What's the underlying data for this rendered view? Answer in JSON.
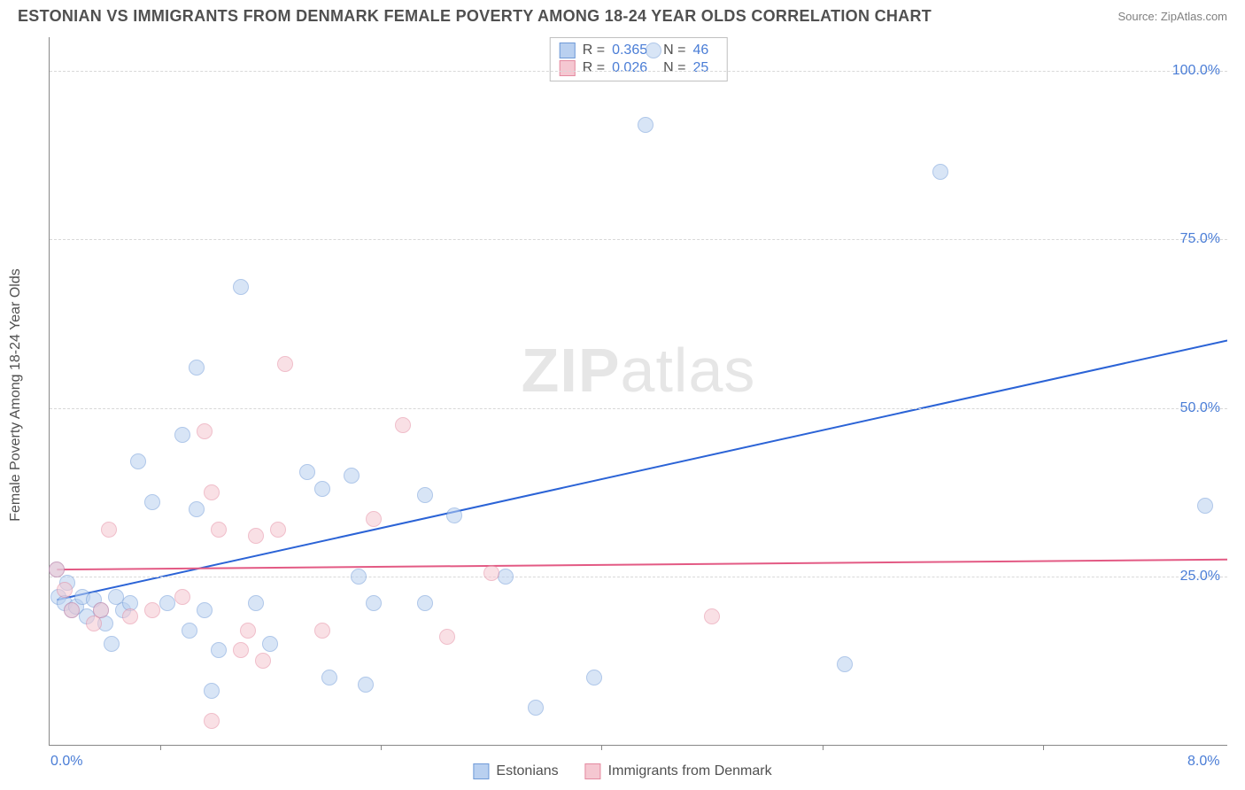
{
  "title": "ESTONIAN VS IMMIGRANTS FROM DENMARK FEMALE POVERTY AMONG 18-24 YEAR OLDS CORRELATION CHART",
  "source": "Source: ZipAtlas.com",
  "watermark_bold": "ZIP",
  "watermark_light": "atlas",
  "y_axis_label": "Female Poverty Among 18-24 Year Olds",
  "chart": {
    "type": "scatter",
    "xlim": [
      0.0,
      8.0
    ],
    "ylim": [
      0.0,
      105.0
    ],
    "x_ticks_at": [
      0.75,
      2.25,
      3.75,
      5.25,
      6.75
    ],
    "x_labels": [
      {
        "text": "0.0%",
        "x": 0.0
      },
      {
        "text": "8.0%",
        "x": 8.0
      }
    ],
    "y_gridlines": [
      25.0,
      50.0,
      75.0,
      100.0
    ],
    "y_labels": [
      "25.0%",
      "50.0%",
      "75.0%",
      "100.0%"
    ],
    "background_color": "#ffffff",
    "grid_color": "#d8d8d8",
    "axis_color": "#888888",
    "label_color": "#4a7dd6",
    "marker_radius": 9,
    "marker_stroke_width": 1,
    "series": [
      {
        "name": "Estonians",
        "fill": "#b9d0f0",
        "stroke": "#6f9ad8",
        "fill_opacity": 0.55,
        "trend_color": "#2b63d6",
        "trend_width": 2,
        "trend": {
          "x1": 0.05,
          "y1": 21.5,
          "x2": 8.0,
          "y2": 60.0
        },
        "R": "0.365",
        "N": "46",
        "points": [
          [
            0.05,
            26.0
          ],
          [
            0.06,
            22.0
          ],
          [
            0.1,
            21.0
          ],
          [
            0.12,
            24.0
          ],
          [
            0.15,
            20.0
          ],
          [
            0.18,
            20.5
          ],
          [
            0.22,
            22.0
          ],
          [
            0.25,
            19.0
          ],
          [
            0.3,
            21.5
          ],
          [
            0.35,
            20.0
          ],
          [
            0.38,
            18.0
          ],
          [
            0.42,
            15.0
          ],
          [
            0.45,
            22.0
          ],
          [
            0.5,
            20.0
          ],
          [
            0.55,
            21.0
          ],
          [
            0.6,
            42.0
          ],
          [
            0.7,
            36.0
          ],
          [
            0.8,
            21.0
          ],
          [
            0.9,
            46.0
          ],
          [
            0.95,
            17.0
          ],
          [
            1.0,
            35.0
          ],
          [
            1.0,
            56.0
          ],
          [
            1.05,
            20.0
          ],
          [
            1.1,
            8.0
          ],
          [
            1.15,
            14.0
          ],
          [
            1.3,
            68.0
          ],
          [
            1.4,
            21.0
          ],
          [
            1.5,
            15.0
          ],
          [
            1.75,
            40.5
          ],
          [
            1.85,
            38.0
          ],
          [
            1.9,
            10.0
          ],
          [
            2.05,
            40.0
          ],
          [
            2.1,
            25.0
          ],
          [
            2.15,
            9.0
          ],
          [
            2.2,
            21.0
          ],
          [
            2.55,
            37.0
          ],
          [
            2.55,
            21.0
          ],
          [
            2.75,
            34.0
          ],
          [
            3.1,
            25.0
          ],
          [
            3.3,
            5.5
          ],
          [
            3.7,
            10.0
          ],
          [
            4.05,
            92.0
          ],
          [
            4.1,
            103.0
          ],
          [
            5.4,
            12.0
          ],
          [
            6.05,
            85.0
          ],
          [
            7.85,
            35.5
          ]
        ]
      },
      {
        "name": "Immigrants from Denmark",
        "fill": "#f5c7d1",
        "stroke": "#e48aa0",
        "fill_opacity": 0.55,
        "trend_color": "#e35a84",
        "trend_width": 2,
        "trend": {
          "x1": 0.05,
          "y1": 26.0,
          "x2": 8.0,
          "y2": 27.5
        },
        "R": "0.026",
        "N": "25",
        "points": [
          [
            0.05,
            26.0
          ],
          [
            0.1,
            23.0
          ],
          [
            0.15,
            20.0
          ],
          [
            0.3,
            18.0
          ],
          [
            0.35,
            20.0
          ],
          [
            0.4,
            32.0
          ],
          [
            0.55,
            19.0
          ],
          [
            0.7,
            20.0
          ],
          [
            0.9,
            22.0
          ],
          [
            1.05,
            46.5
          ],
          [
            1.1,
            37.5
          ],
          [
            1.1,
            3.5
          ],
          [
            1.15,
            32.0
          ],
          [
            1.3,
            14.0
          ],
          [
            1.35,
            17.0
          ],
          [
            1.4,
            31.0
          ],
          [
            1.45,
            12.5
          ],
          [
            1.55,
            32.0
          ],
          [
            1.6,
            56.5
          ],
          [
            1.85,
            17.0
          ],
          [
            2.2,
            33.5
          ],
          [
            2.4,
            47.5
          ],
          [
            2.7,
            16.0
          ],
          [
            3.0,
            25.5
          ],
          [
            4.5,
            19.0
          ]
        ]
      }
    ]
  },
  "legend_top_labels": {
    "R": "R =",
    "N": "N ="
  },
  "legend_bottom": [
    "Estonians",
    "Immigrants from Denmark"
  ]
}
